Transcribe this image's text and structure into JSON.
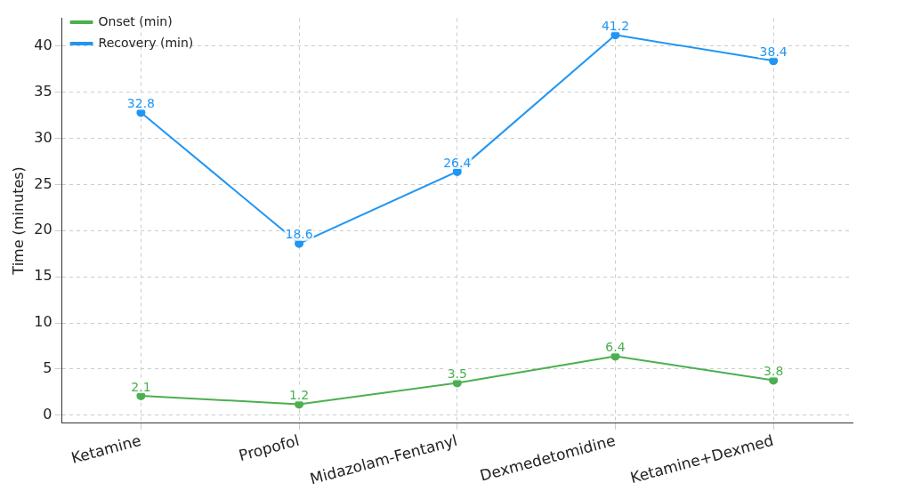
{
  "chart_data": {
    "type": "line",
    "ylabel": "Time (minutes)",
    "categories": [
      "Ketamine",
      "Propofol",
      "Midazolam-Fentanyl",
      "Dexmedetomidine",
      "Ketamine+Dexmed"
    ],
    "series": [
      {
        "name": "Onset (min)",
        "color": "#4caf50",
        "values": [
          2.1,
          1.2,
          3.5,
          6.4,
          3.8
        ]
      },
      {
        "name": "Recovery (min)",
        "color": "#2196f3",
        "values": [
          32.8,
          18.6,
          26.4,
          41.2,
          38.4
        ]
      }
    ],
    "ylim": [
      -0.8,
      43
    ],
    "yticks": [
      0,
      5,
      10,
      15,
      20,
      25,
      30,
      35,
      40
    ],
    "grid": true,
    "legend": "top left",
    "marker": "circle",
    "line_style": "solid",
    "data_labels": true
  }
}
